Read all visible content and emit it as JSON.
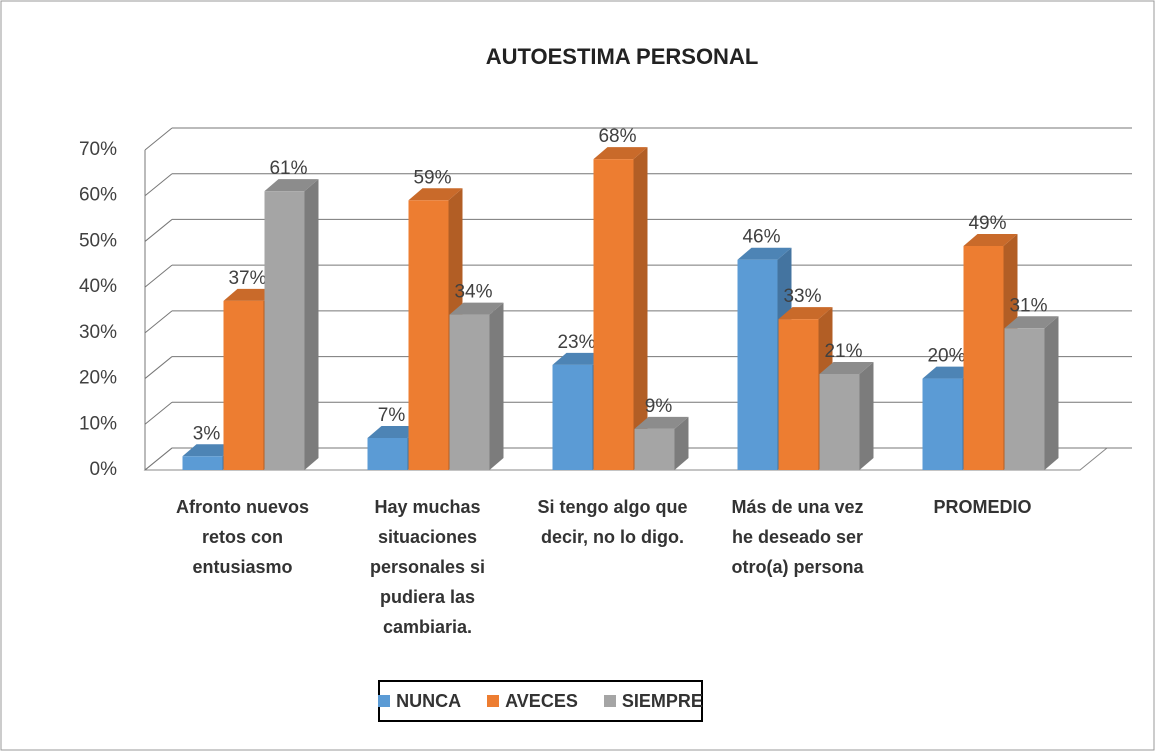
{
  "chart_data": {
    "type": "bar3d",
    "title": "AUTOESTIMA PERSONAL",
    "categories": [
      "Afronto nuevos retos con entusiasmo",
      "Hay muchas situaciones personales si pudiera las cambiaria.",
      "Si tengo algo que decir, no lo digo.",
      "Más de una vez he deseado ser otro(a) persona",
      "PROMEDIO"
    ],
    "series": [
      {
        "name": "NUNCA",
        "color": "#5b9bd5",
        "values": [
          3,
          7,
          23,
          46,
          20
        ],
        "value_labels": [
          "3%",
          "7%",
          "23%",
          "46%",
          "20%"
        ]
      },
      {
        "name": "AVECES",
        "color": "#ed7d31",
        "values": [
          37,
          59,
          68,
          33,
          49
        ],
        "value_labels": [
          "37%",
          "59%",
          "68%",
          "33%",
          "49%"
        ]
      },
      {
        "name": "SIEMPRE",
        "color": "#a5a5a5",
        "values": [
          61,
          34,
          9,
          21,
          31
        ],
        "value_labels": [
          "61%",
          "34%",
          "9%",
          "21%",
          "31%"
        ]
      }
    ],
    "ylim": [
      0,
      70
    ],
    "yticks": [
      {
        "value": 0,
        "label": "0%"
      },
      {
        "value": 10,
        "label": "10%"
      },
      {
        "value": 20,
        "label": "20%"
      },
      {
        "value": 30,
        "label": "30%"
      },
      {
        "value": 40,
        "label": "40%"
      },
      {
        "value": 50,
        "label": "50%"
      },
      {
        "value": 60,
        "label": "60%"
      },
      {
        "value": 70,
        "label": "70%"
      }
    ],
    "grid": true,
    "legend": "bottom"
  }
}
